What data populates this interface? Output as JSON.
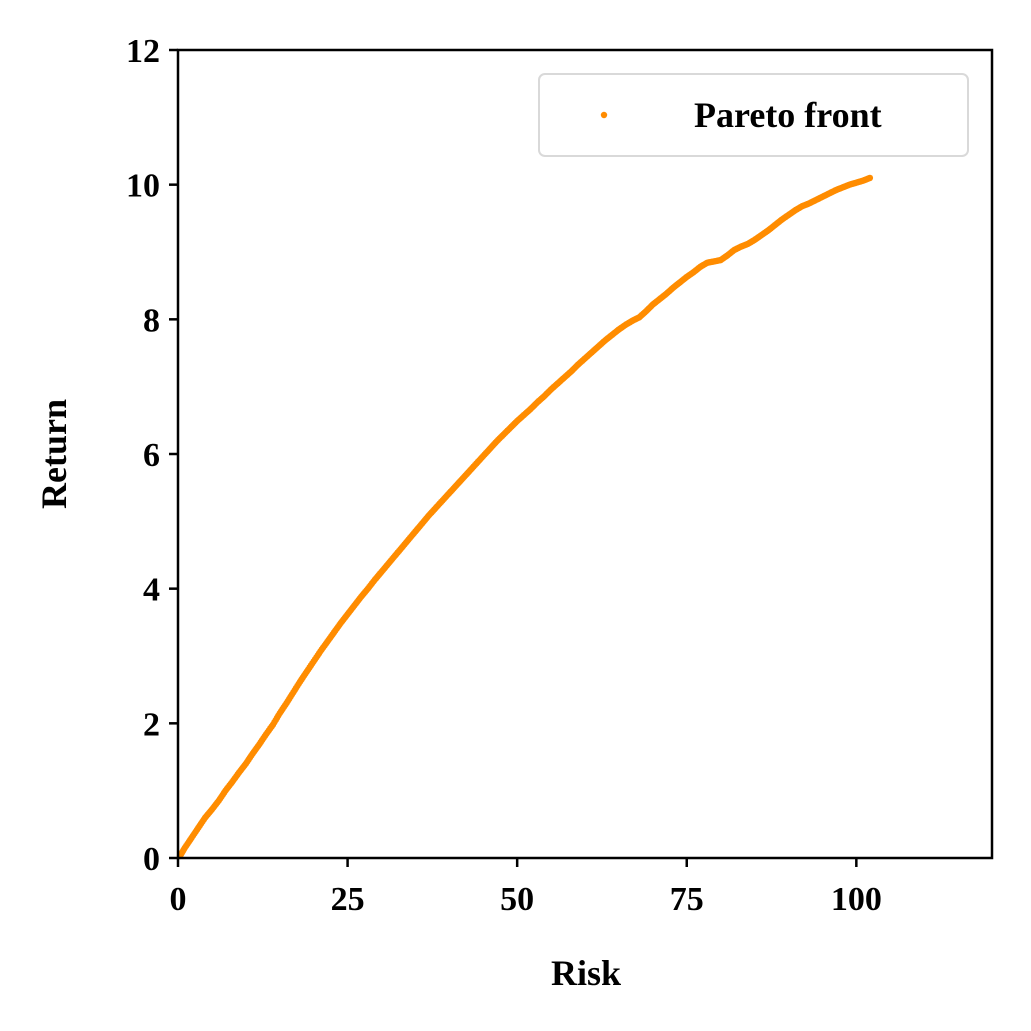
{
  "chart_data": {
    "type": "scatter",
    "title": "",
    "xlabel": "Risk",
    "ylabel": "Return",
    "xlim": [
      0,
      120
    ],
    "ylim": [
      0,
      12
    ],
    "xticks": [
      0,
      25,
      50,
      75,
      100
    ],
    "yticks": [
      0,
      2,
      4,
      6,
      8,
      10,
      12
    ],
    "grid": false,
    "legend": {
      "position": "top-right"
    },
    "series": [
      {
        "name": "Pareto front",
        "color": "#ff8c00",
        "x": [
          0.3,
          1,
          2,
          3,
          4,
          5,
          6,
          7,
          8,
          9,
          10,
          11,
          12,
          13,
          14,
          15,
          16,
          17,
          18,
          19,
          20,
          21,
          22,
          23,
          24,
          25,
          26,
          27,
          28,
          29,
          30,
          31,
          32,
          33,
          34,
          35,
          36,
          37,
          38,
          39,
          40,
          41,
          42,
          43,
          44,
          45,
          46,
          47,
          48,
          49,
          50,
          51,
          52,
          53,
          54,
          55,
          56,
          57,
          58,
          59,
          60,
          61,
          62,
          63,
          64,
          65,
          66,
          67,
          68,
          69,
          70,
          71,
          72,
          73,
          74,
          75,
          76,
          77,
          78,
          79,
          80,
          81,
          82,
          83,
          84,
          85,
          86,
          87,
          88,
          89,
          90,
          91,
          92,
          93,
          94,
          95,
          96,
          97,
          98,
          99,
          100,
          101,
          102
        ],
        "y": [
          0.03,
          0.15,
          0.3,
          0.45,
          0.6,
          0.72,
          0.85,
          1.0,
          1.13,
          1.27,
          1.4,
          1.55,
          1.69,
          1.84,
          1.98,
          2.15,
          2.3,
          2.46,
          2.62,
          2.77,
          2.92,
          3.07,
          3.21,
          3.35,
          3.49,
          3.62,
          3.75,
          3.88,
          4.0,
          4.13,
          4.25,
          4.37,
          4.49,
          4.61,
          4.73,
          4.85,
          4.97,
          5.09,
          5.2,
          5.31,
          5.42,
          5.53,
          5.64,
          5.75,
          5.86,
          5.97,
          6.08,
          6.19,
          6.29,
          6.39,
          6.49,
          6.58,
          6.67,
          6.77,
          6.86,
          6.96,
          7.05,
          7.14,
          7.23,
          7.33,
          7.42,
          7.51,
          7.6,
          7.69,
          7.77,
          7.85,
          7.92,
          7.98,
          8.03,
          8.12,
          8.22,
          8.3,
          8.38,
          8.47,
          8.55,
          8.63,
          8.7,
          8.78,
          8.84,
          8.86,
          8.88,
          8.95,
          9.03,
          9.08,
          9.12,
          9.18,
          9.25,
          9.32,
          9.4,
          9.48,
          9.55,
          9.62,
          9.68,
          9.72,
          9.77,
          9.82,
          9.87,
          9.92,
          9.96,
          10.0,
          10.03,
          10.06,
          10.1
        ]
      }
    ]
  }
}
